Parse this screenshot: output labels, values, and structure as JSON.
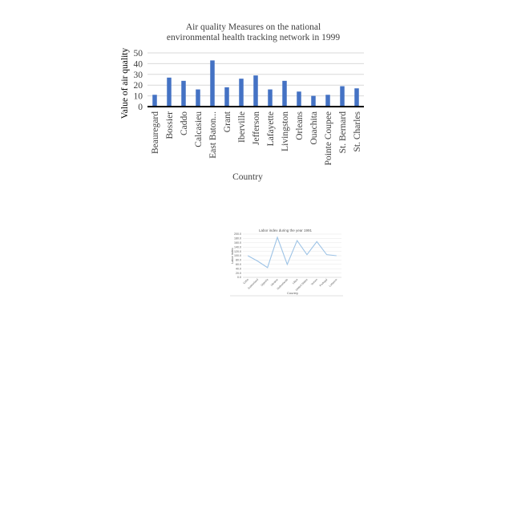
{
  "chart_data": [
    {
      "type": "bar",
      "title_lines": [
        "Air quality Measures on the national",
        "environmental health tracking network in 1999"
      ],
      "xlabel": "Country",
      "ylabel": "Value of  air quality",
      "categories": [
        "Beauregard",
        "Bossier",
        "Caddo",
        "Calcasieu",
        "East Baton...",
        "Grant",
        "Iberville",
        "Jefferson",
        "Lafayette",
        "Livingston",
        "Orleans",
        "Ouachita",
        "Pointe Coupee",
        "St. Bernard",
        "St. Charles"
      ],
      "values": [
        11,
        27,
        24,
        16,
        43,
        18,
        26,
        29,
        16,
        24,
        14,
        10,
        11,
        19,
        17
      ],
      "ylim": [
        0,
        50
      ],
      "yticks": [
        "0",
        "10",
        "20",
        "30",
        "40",
        "50"
      ],
      "grid": true,
      "colors": {
        "bar": "#4472c4",
        "grid": "#d9d9d9",
        "axis": "#000000",
        "text": "#404040"
      }
    },
    {
      "type": "line",
      "title": "Labor index during the year 1991",
      "xlabel": "Country",
      "ylabel": "Labor index",
      "categories": [
        "Cuba",
        "Switzerland",
        "Uganda",
        "Ukraine",
        "Netherlands",
        "Libya",
        "United States",
        "Yemen",
        "Portugal",
        "Lebanon"
      ],
      "values": [
        100,
        75,
        45,
        185,
        60,
        170,
        105,
        165,
        105,
        100
      ],
      "ylim": [
        0,
        200
      ],
      "yticks": [
        "0.0",
        "20.0",
        "40.0",
        "60.0",
        "80.0",
        "100.0",
        "120.0",
        "140.0",
        "160.0",
        "180.0",
        "200.0"
      ],
      "grid": true,
      "colors": {
        "line": "#9dc3e6",
        "grid": "#e6e6e6",
        "axis": "#bfbfbf",
        "text": "#595959"
      }
    }
  ]
}
